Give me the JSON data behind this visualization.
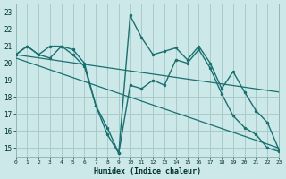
{
  "xlabel": "Humidex (Indice chaleur)",
  "bg_color": "#cce8e8",
  "grid_color": "#aacaca",
  "line_color": "#1a7070",
  "xlim": [
    0,
    23
  ],
  "ylim": [
    14.5,
    23.5
  ],
  "xticks": [
    0,
    1,
    2,
    3,
    4,
    5,
    6,
    7,
    8,
    9,
    10,
    11,
    12,
    13,
    14,
    15,
    16,
    17,
    18,
    19,
    20,
    21,
    22,
    23
  ],
  "yticks": [
    15,
    16,
    17,
    18,
    19,
    20,
    21,
    22,
    23
  ],
  "series": [
    {
      "x": [
        0,
        1,
        2,
        3,
        4,
        5,
        6,
        7,
        8,
        9,
        10,
        11,
        12,
        13,
        14,
        15,
        16,
        17,
        18,
        19,
        20,
        21,
        22,
        23
      ],
      "y": [
        20.5,
        21.0,
        20.5,
        21.0,
        21.0,
        20.8,
        20.0,
        17.5,
        15.8,
        14.7,
        22.8,
        21.5,
        20.5,
        20.7,
        20.9,
        20.2,
        21.0,
        20.0,
        18.5,
        19.5,
        18.3,
        17.2,
        16.5,
        14.9
      ],
      "marker": true,
      "lw": 1.0,
      "ls": "-"
    },
    {
      "x": [
        0,
        1,
        2,
        3,
        4,
        5,
        6,
        7,
        8,
        9,
        10,
        11,
        12,
        13,
        14,
        15,
        16,
        17,
        18,
        19,
        20,
        21,
        22,
        23
      ],
      "y": [
        20.5,
        21.0,
        20.5,
        20.3,
        21.0,
        20.5,
        19.8,
        17.5,
        16.2,
        14.7,
        18.7,
        18.5,
        19.0,
        18.7,
        20.2,
        20.0,
        20.8,
        19.7,
        18.2,
        16.9,
        16.2,
        15.8,
        15.0,
        14.8
      ],
      "marker": true,
      "lw": 1.0,
      "ls": "-"
    },
    {
      "x": [
        0,
        23
      ],
      "y": [
        20.5,
        18.3
      ],
      "marker": false,
      "lw": 0.9,
      "ls": "-"
    },
    {
      "x": [
        0,
        23
      ],
      "y": [
        20.3,
        15.0
      ],
      "marker": false,
      "lw": 0.9,
      "ls": "-"
    }
  ]
}
